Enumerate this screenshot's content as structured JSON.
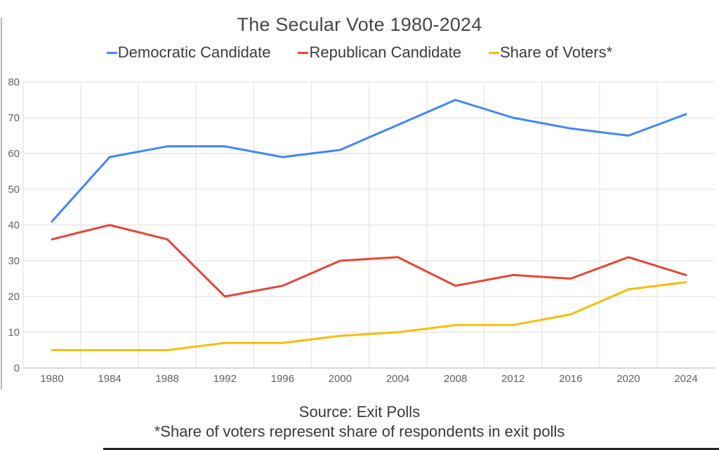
{
  "chart_data": {
    "type": "line",
    "title": "The Secular Vote 1980-2024",
    "x_labels": [
      "1980",
      "1984",
      "1988",
      "1992",
      "1996",
      "2000",
      "2004",
      "2008",
      "2012",
      "2016",
      "2020",
      "2024"
    ],
    "series": [
      {
        "name": "Democratic Candidate",
        "color": "#4285f4",
        "values": [
          41,
          59,
          62,
          62,
          59,
          61,
          68,
          75,
          70,
          67,
          65,
          71
        ]
      },
      {
        "name": "Republican Candidate",
        "color": "#ea4335",
        "values": [
          36,
          40,
          36,
          20,
          23,
          30,
          31,
          23,
          26,
          25,
          31,
          26
        ]
      },
      {
        "name": "Share of Voters*",
        "color": "#fbbc04",
        "values": [
          5,
          5,
          5,
          7,
          7,
          9,
          10,
          12,
          12,
          15,
          22,
          24
        ]
      }
    ],
    "ylim": [
      0,
      80
    ],
    "yticks": [
      0,
      10,
      20,
      30,
      40,
      50,
      60,
      70,
      80
    ],
    "grid": true,
    "legend_position": "top",
    "source": "Source: Exit Polls",
    "note": "*Share of voters represent share of respondents in exit polls"
  },
  "colors": {
    "axis_label": "#616161",
    "gridline": "#e8e8e8",
    "baseline": "#c9c9c9",
    "title_text": "#474747",
    "legend_text": "#3c3c3c",
    "footer_text": "#3a3a3a"
  }
}
